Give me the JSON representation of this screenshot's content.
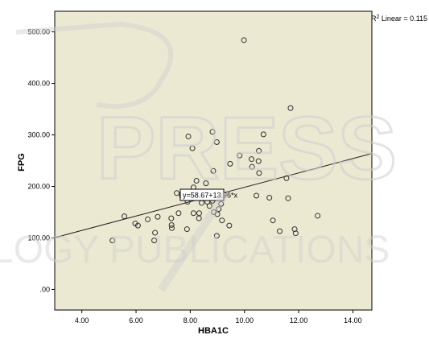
{
  "chart_data": {
    "type": "scatter",
    "xlabel": "HBA1C",
    "ylabel": "FPG",
    "xlim": [
      3.0,
      14.7
    ],
    "ylim": [
      -40,
      540
    ],
    "x_ticks": [
      4,
      6,
      8,
      10,
      12,
      14
    ],
    "x_tick_labels": [
      "4.00",
      "6.00",
      "8.00",
      "10.00",
      "12.00",
      "14.00"
    ],
    "y_ticks": [
      0,
      100,
      200,
      300,
      400,
      500
    ],
    "y_tick_labels": [
      ".00",
      "100.00",
      "200.00",
      "300.00",
      "400.00",
      "500.00"
    ],
    "grid": false,
    "background": "#ece9d2",
    "marker_color": "#303030",
    "line_color": "#202020",
    "fit_line": {
      "equation_label": "y=58.67+13.96*x",
      "intercept": 58.67,
      "slope": 13.96,
      "r2_label_sup": "2",
      "r2_label": "Linear = 0.115"
    },
    "points": [
      {
        "x": 9.98,
        "y": 484
      },
      {
        "x": 11.7,
        "y": 352
      },
      {
        "x": 8.82,
        "y": 306
      },
      {
        "x": 7.93,
        "y": 297
      },
      {
        "x": 10.7,
        "y": 301
      },
      {
        "x": 8.98,
        "y": 286
      },
      {
        "x": 8.08,
        "y": 274
      },
      {
        "x": 9.82,
        "y": 260
      },
      {
        "x": 10.53,
        "y": 269
      },
      {
        "x": 10.26,
        "y": 253
      },
      {
        "x": 10.52,
        "y": 249
      },
      {
        "x": 9.47,
        "y": 244
      },
      {
        "x": 10.28,
        "y": 238
      },
      {
        "x": 8.85,
        "y": 230
      },
      {
        "x": 10.54,
        "y": 226
      },
      {
        "x": 11.55,
        "y": 216
      },
      {
        "x": 8.23,
        "y": 211
      },
      {
        "x": 8.58,
        "y": 206
      },
      {
        "x": 8.12,
        "y": 198
      },
      {
        "x": 7.5,
        "y": 187
      },
      {
        "x": 7.68,
        "y": 185
      },
      {
        "x": 7.7,
        "y": 180
      },
      {
        "x": 10.44,
        "y": 182
      },
      {
        "x": 10.92,
        "y": 178
      },
      {
        "x": 11.61,
        "y": 177
      },
      {
        "x": 7.9,
        "y": 170
      },
      {
        "x": 8.42,
        "y": 168
      },
      {
        "x": 8.63,
        "y": 170
      },
      {
        "x": 8.82,
        "y": 172
      },
      {
        "x": 9.14,
        "y": 166
      },
      {
        "x": 8.71,
        "y": 162
      },
      {
        "x": 9.05,
        "y": 156
      },
      {
        "x": 7.57,
        "y": 148
      },
      {
        "x": 8.12,
        "y": 148
      },
      {
        "x": 8.33,
        "y": 148
      },
      {
        "x": 8.87,
        "y": 150
      },
      {
        "x": 9.0,
        "y": 146
      },
      {
        "x": 5.57,
        "y": 142
      },
      {
        "x": 6.8,
        "y": 141
      },
      {
        "x": 7.3,
        "y": 138
      },
      {
        "x": 6.43,
        "y": 136
      },
      {
        "x": 8.32,
        "y": 138
      },
      {
        "x": 9.17,
        "y": 134
      },
      {
        "x": 11.05,
        "y": 134
      },
      {
        "x": 12.7,
        "y": 143
      },
      {
        "x": 5.97,
        "y": 128
      },
      {
        "x": 6.07,
        "y": 124
      },
      {
        "x": 7.31,
        "y": 125
      },
      {
        "x": 7.32,
        "y": 119
      },
      {
        "x": 9.44,
        "y": 124
      },
      {
        "x": 7.88,
        "y": 117
      },
      {
        "x": 11.85,
        "y": 117
      },
      {
        "x": 11.3,
        "y": 113
      },
      {
        "x": 6.7,
        "y": 110
      },
      {
        "x": 11.89,
        "y": 109
      },
      {
        "x": 8.98,
        "y": 104
      },
      {
        "x": 5.13,
        "y": 95
      },
      {
        "x": 6.67,
        "y": 95
      }
    ]
  },
  "watermark": {
    "word_1": "PRESS",
    "word_2": "LOGY PUBLICATIONS",
    "color": "#c8c8c8"
  }
}
